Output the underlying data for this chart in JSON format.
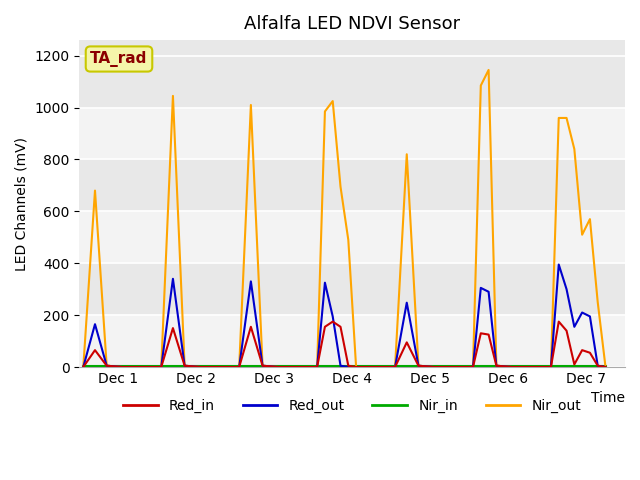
{
  "title": "Alfalfa LED NDVI Sensor",
  "ylabel": "LED Channels (mV)",
  "xlabel": "Time",
  "ylim": [
    0,
    1260
  ],
  "yticks": [
    0,
    200,
    400,
    600,
    800,
    1000,
    1200
  ],
  "xtick_labels": [
    "Dec 1",
    "Dec 2",
    "Dec 3",
    "Dec 4",
    "Dec 5",
    "Dec 6",
    "Dec 7"
  ],
  "xtick_positions": [
    0.5,
    1.5,
    2.5,
    3.5,
    4.5,
    5.5,
    6.5
  ],
  "xlim": [
    0,
    7
  ],
  "background_color": "#e8e8e8",
  "grid_color": "#ffffff",
  "annotation_text": "TA_rad",
  "annotation_color": "#8B0000",
  "annotation_bg": "#f5f5aa",
  "annotation_border": "#c8c800",
  "series": {
    "Red_in": {
      "color": "#cc0000",
      "lw": 1.5
    },
    "Red_out": {
      "color": "#0000cc",
      "lw": 1.5
    },
    "Nir_in": {
      "color": "#00aa00",
      "lw": 1.5
    },
    "Nir_out": {
      "color": "#FFA500",
      "lw": 1.5
    }
  },
  "data": {
    "x": [
      0.05,
      0.2,
      0.35,
      0.55,
      1.05,
      1.2,
      1.35,
      1.55,
      2.05,
      2.2,
      2.35,
      2.55,
      3.05,
      3.15,
      3.25,
      3.35,
      3.45,
      3.55,
      4.05,
      4.2,
      4.35,
      4.55,
      5.05,
      5.15,
      5.25,
      5.35,
      5.55,
      6.05,
      6.15,
      6.25,
      6.35,
      6.45,
      6.55,
      6.65,
      6.75
    ],
    "Red_in": [
      0,
      65,
      5,
      0,
      0,
      150,
      5,
      0,
      0,
      155,
      5,
      0,
      0,
      155,
      175,
      155,
      5,
      0,
      0,
      95,
      5,
      0,
      0,
      130,
      125,
      5,
      0,
      0,
      175,
      140,
      10,
      65,
      55,
      5,
      0
    ],
    "Red_out": [
      0,
      165,
      5,
      0,
      0,
      340,
      5,
      0,
      0,
      330,
      5,
      0,
      0,
      325,
      195,
      5,
      0,
      0,
      0,
      248,
      5,
      0,
      0,
      305,
      290,
      5,
      0,
      0,
      395,
      300,
      155,
      210,
      195,
      5,
      0
    ],
    "Nir_in": [
      2,
      2,
      2,
      2,
      2,
      2,
      2,
      2,
      2,
      2,
      2,
      2,
      2,
      2,
      2,
      2,
      2,
      2,
      2,
      2,
      2,
      2,
      2,
      2,
      2,
      2,
      2,
      2,
      2,
      2,
      2,
      2,
      2,
      2,
      2
    ],
    "Nir_out": [
      0,
      680,
      5,
      0,
      0,
      1045,
      5,
      0,
      0,
      1010,
      5,
      0,
      0,
      985,
      1025,
      695,
      490,
      0,
      0,
      820,
      5,
      0,
      0,
      1085,
      1145,
      5,
      0,
      0,
      960,
      960,
      840,
      510,
      570,
      250,
      0
    ]
  }
}
